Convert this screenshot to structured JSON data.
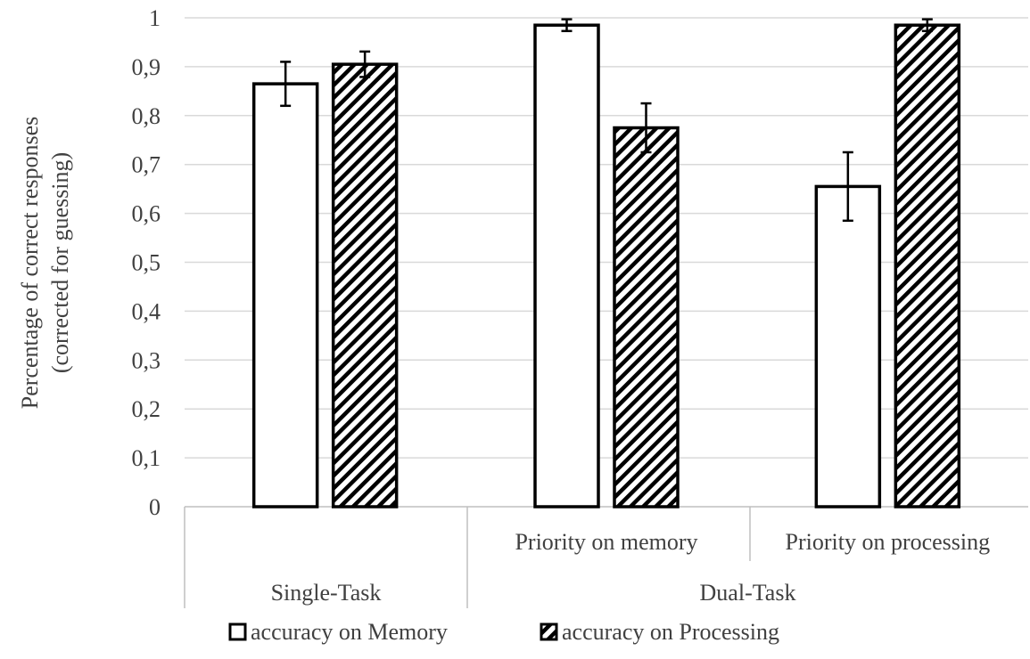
{
  "chart_data": {
    "type": "bar",
    "ylabel_lines": [
      "Percentage of correct responses",
      "(corrected for guessing)"
    ],
    "xlabel": "",
    "ylim": [
      0,
      1
    ],
    "ytick_labels": [
      "0",
      "0,1",
      "0,2",
      "0,3",
      "0,4",
      "0,5",
      "0,6",
      "0,7",
      "0,8",
      "0,9",
      "1"
    ],
    "grid": true,
    "legend_position": "bottom",
    "categories": [
      {
        "group": "Single-Task",
        "label": ""
      },
      {
        "group": "Dual-Task",
        "label": "Priority on memory"
      },
      {
        "group": "Dual-Task",
        "label": "Priority on processing"
      }
    ],
    "groups": [
      "Single-Task",
      "Dual-Task"
    ],
    "series": [
      {
        "name": "accuracy on Memory",
        "pattern": "none",
        "values": [
          0.865,
          0.985,
          0.655
        ],
        "errors": [
          0.045,
          0.012,
          0.07
        ]
      },
      {
        "name": "accuracy on Processing",
        "pattern": "diagonal-hatch",
        "values": [
          0.905,
          0.775,
          0.985
        ],
        "errors": [
          0.026,
          0.05,
          0.012
        ]
      }
    ]
  },
  "colors": {
    "bar_stroke": "#000000",
    "bar_fill": "#ffffff",
    "hatch": "#000000",
    "grid": "#d9d9d9",
    "axis": "#bfbfbf",
    "text": "#404040"
  }
}
